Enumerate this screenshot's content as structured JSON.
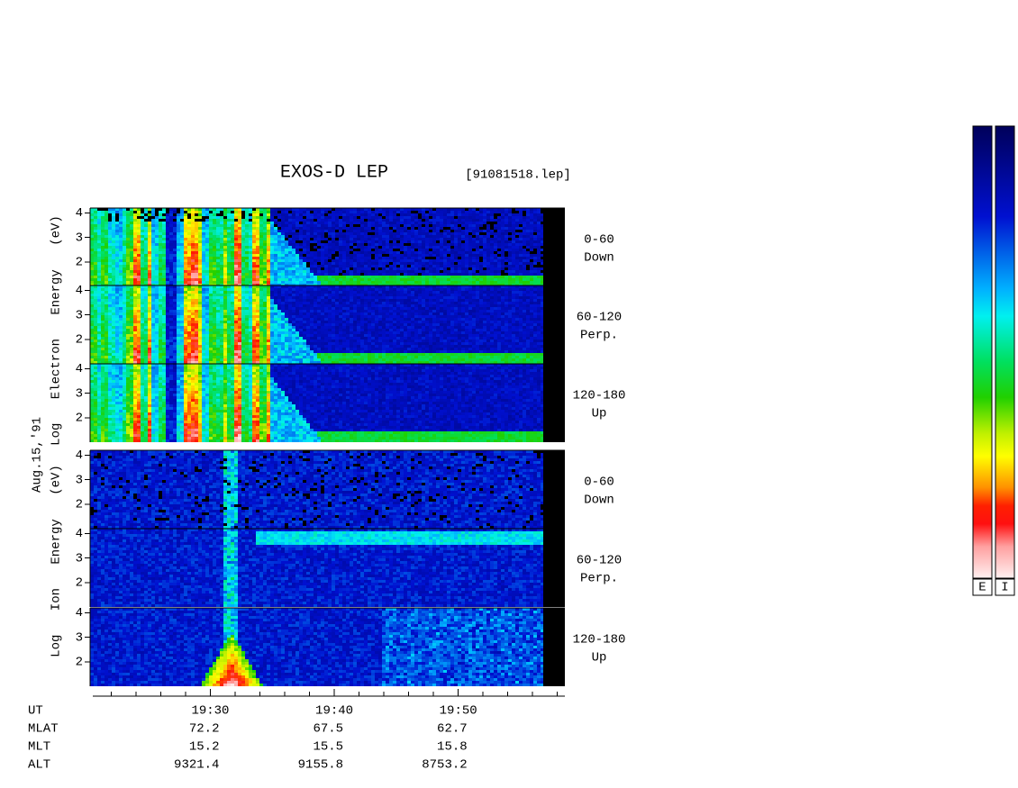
{
  "title": "EXOS-D LEP",
  "file": "[91081518.lep]",
  "date": "Aug.15,'91",
  "groups": [
    {
      "axis_label": "Log Electron Energy (eV)",
      "panels": [
        {
          "angle": "0-60",
          "direction": "Down"
        },
        {
          "angle": "60-120",
          "direction": "Perp."
        },
        {
          "angle": "120-180",
          "direction": "Up"
        }
      ]
    },
    {
      "axis_label": "Log Ion Energy (eV)",
      "panels": [
        {
          "angle": "0-60",
          "direction": "Down"
        },
        {
          "angle": "60-120",
          "direction": "Perp."
        },
        {
          "angle": "120-180",
          "direction": "Up"
        }
      ]
    }
  ],
  "ylim": [
    1,
    4.2
  ],
  "yticks": [
    2,
    3,
    4
  ],
  "xlim": [
    1160.3,
    1198.6
  ],
  "xticks": [
    {
      "value": 1170,
      "label": "19:30"
    },
    {
      "value": 1180,
      "label": "19:40"
    },
    {
      "value": 1190,
      "label": "19:50"
    }
  ],
  "xminor_ticks": [
    1162,
    1164,
    1166,
    1168,
    1172,
    1174,
    1176,
    1178,
    1182,
    1184,
    1186,
    1188,
    1192,
    1194,
    1196,
    1198
  ],
  "ephemeris": {
    "labels": [
      "UT",
      "MLAT",
      "MLT",
      "ALT"
    ],
    "rows": [
      [
        72.2,
        67.5,
        62.7
      ],
      [
        15.2,
        15.5,
        15.8
      ],
      [
        9321.4,
        9155.8,
        8753.2
      ]
    ]
  },
  "colorbars": [
    "E",
    "I"
  ]
}
